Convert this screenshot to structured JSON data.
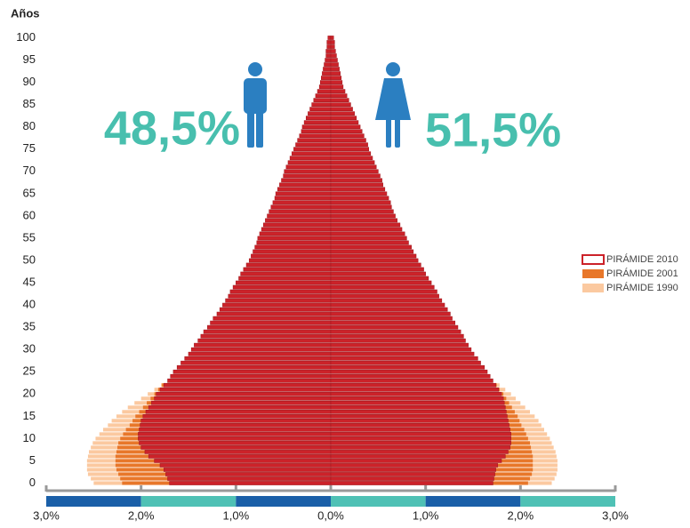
{
  "chart_data": {
    "type": "pyramid",
    "ylabel": "Años",
    "annotations": {
      "male": "48,5%",
      "female": "51,5%"
    },
    "y": [
      0,
      1,
      2,
      3,
      4,
      5,
      6,
      7,
      8,
      9,
      10,
      11,
      12,
      13,
      14,
      15,
      16,
      17,
      18,
      19,
      20,
      21,
      22,
      23,
      24,
      25,
      26,
      27,
      28,
      29,
      30,
      31,
      32,
      33,
      34,
      35,
      36,
      37,
      38,
      39,
      40,
      41,
      42,
      43,
      44,
      45,
      46,
      47,
      48,
      49,
      50,
      51,
      52,
      53,
      54,
      55,
      56,
      57,
      58,
      59,
      60,
      61,
      62,
      63,
      64,
      65,
      66,
      67,
      68,
      69,
      70,
      71,
      72,
      73,
      74,
      75,
      76,
      77,
      78,
      79,
      80,
      81,
      82,
      83,
      84,
      85,
      86,
      87,
      88,
      89,
      90,
      91,
      92,
      93,
      94,
      95,
      96,
      97,
      98,
      99,
      100
    ],
    "ylim": [
      -0.5,
      100.5
    ],
    "yticks": [
      0,
      5,
      10,
      15,
      20,
      25,
      30,
      35,
      40,
      45,
      50,
      55,
      60,
      65,
      70,
      75,
      80,
      85,
      90,
      95,
      100
    ],
    "xlim": [
      -3,
      3
    ],
    "xticks": [
      {
        "value": -3,
        "label": "3,0%"
      },
      {
        "value": -2,
        "label": "2,0%"
      },
      {
        "value": -1,
        "label": "1,0%"
      },
      {
        "value": 0,
        "label": "0,0%"
      },
      {
        "value": 1,
        "label": "1,0%"
      },
      {
        "value": 2,
        "label": "2,0%"
      },
      {
        "value": 3,
        "label": "3,0%"
      }
    ],
    "legend": "right",
    "series": [
      {
        "name": "PIRÁMIDE 2010",
        "color": "#cc2229",
        "male": [
          1.7,
          1.72,
          1.74,
          1.76,
          1.8,
          1.86,
          1.92,
          1.96,
          2.0,
          2.02,
          2.03,
          2.03,
          2.02,
          2.01,
          2.0,
          1.98,
          1.95,
          1.92,
          1.89,
          1.86,
          1.84,
          1.8,
          1.76,
          1.72,
          1.69,
          1.66,
          1.62,
          1.58,
          1.54,
          1.5,
          1.47,
          1.44,
          1.4,
          1.37,
          1.34,
          1.3,
          1.27,
          1.24,
          1.2,
          1.17,
          1.14,
          1.11,
          1.08,
          1.06,
          1.03,
          1.0,
          0.97,
          0.95,
          0.92,
          0.89,
          0.86,
          0.84,
          0.82,
          0.8,
          0.78,
          0.77,
          0.75,
          0.73,
          0.71,
          0.69,
          0.67,
          0.65,
          0.63,
          0.61,
          0.59,
          0.58,
          0.56,
          0.54,
          0.52,
          0.5,
          0.49,
          0.47,
          0.45,
          0.43,
          0.41,
          0.39,
          0.37,
          0.35,
          0.33,
          0.31,
          0.3,
          0.28,
          0.26,
          0.24,
          0.22,
          0.2,
          0.18,
          0.16,
          0.14,
          0.12,
          0.11,
          0.1,
          0.09,
          0.08,
          0.07,
          0.06,
          0.05,
          0.05,
          0.04,
          0.04,
          0.03
        ],
        "female": [
          1.71,
          1.72,
          1.73,
          1.74,
          1.76,
          1.8,
          1.84,
          1.87,
          1.89,
          1.9,
          1.9,
          1.9,
          1.89,
          1.88,
          1.87,
          1.86,
          1.85,
          1.84,
          1.83,
          1.82,
          1.8,
          1.77,
          1.74,
          1.71,
          1.68,
          1.65,
          1.62,
          1.58,
          1.55,
          1.51,
          1.48,
          1.45,
          1.42,
          1.4,
          1.37,
          1.34,
          1.31,
          1.28,
          1.26,
          1.23,
          1.2,
          1.17,
          1.14,
          1.12,
          1.09,
          1.06,
          1.03,
          1.0,
          0.98,
          0.95,
          0.92,
          0.9,
          0.87,
          0.85,
          0.82,
          0.8,
          0.78,
          0.75,
          0.73,
          0.7,
          0.68,
          0.66,
          0.64,
          0.63,
          0.61,
          0.59,
          0.57,
          0.55,
          0.54,
          0.52,
          0.5,
          0.48,
          0.46,
          0.44,
          0.42,
          0.4,
          0.39,
          0.37,
          0.35,
          0.33,
          0.31,
          0.29,
          0.27,
          0.25,
          0.23,
          0.21,
          0.19,
          0.17,
          0.15,
          0.13,
          0.12,
          0.11,
          0.1,
          0.09,
          0.08,
          0.07,
          0.06,
          0.05,
          0.04,
          0.04,
          0.03
        ]
      },
      {
        "name": "PIRÁMIDE 2001",
        "color": "#e8772a",
        "male": [
          2.2,
          2.22,
          2.24,
          2.26,
          2.27,
          2.27,
          2.27,
          2.26,
          2.25,
          2.24,
          2.22,
          2.19,
          2.16,
          2.12,
          2.09,
          2.06,
          2.02,
          1.98,
          1.94,
          1.9,
          1.86,
          1.82,
          1.78,
          null,
          null,
          null,
          null,
          null,
          null,
          null,
          null,
          null,
          null,
          null,
          null,
          null,
          null,
          null,
          null,
          null,
          null,
          null,
          null,
          null,
          null,
          null,
          null,
          null,
          null,
          null,
          null,
          null,
          null,
          null,
          null,
          null,
          null,
          null,
          null,
          null,
          null,
          null,
          null,
          null,
          null,
          null,
          null,
          null,
          null,
          null,
          null,
          null,
          null,
          null,
          null,
          null,
          null,
          null,
          null,
          null,
          null,
          null,
          null,
          null,
          null,
          null,
          null,
          null,
          null,
          null,
          null,
          null,
          null,
          null,
          null,
          null,
          null,
          null,
          null,
          null,
          null
        ],
        "female": [
          2.08,
          2.1,
          2.12,
          2.13,
          2.13,
          2.13,
          2.13,
          2.12,
          2.11,
          2.1,
          2.08,
          2.06,
          2.04,
          2.01,
          1.99,
          1.97,
          1.94,
          1.91,
          1.88,
          1.85,
          1.82,
          1.78,
          1.75,
          null,
          null,
          null,
          null,
          null,
          null,
          null,
          null,
          null,
          null,
          null,
          null,
          null,
          null,
          null,
          null,
          null,
          null,
          null,
          null,
          null,
          null,
          null,
          null,
          null,
          null,
          null,
          null,
          null,
          null,
          null,
          null,
          null,
          null,
          null,
          null,
          null,
          null,
          null,
          null,
          null,
          null,
          null,
          null,
          null,
          null,
          null,
          null,
          null,
          null,
          null,
          null,
          null,
          null,
          null,
          null,
          null,
          null,
          null,
          null,
          null,
          null,
          null,
          null,
          null,
          null,
          null,
          null,
          null,
          null,
          null,
          null,
          null,
          null,
          null,
          null,
          null,
          null
        ]
      },
      {
        "name": "PIRÁMIDE 1990",
        "color": "#fbc9a0",
        "male": [
          2.5,
          2.53,
          2.56,
          2.57,
          2.57,
          2.57,
          2.56,
          2.55,
          2.53,
          2.51,
          2.48,
          2.44,
          2.4,
          2.35,
          2.31,
          2.26,
          2.2,
          2.14,
          2.07,
          2.0,
          1.93,
          1.86,
          1.79,
          null,
          null,
          null,
          null,
          null,
          null,
          null,
          null,
          null,
          null,
          null,
          null,
          null,
          null,
          null,
          null,
          null,
          null,
          null,
          null,
          null,
          null,
          null,
          null,
          null,
          null,
          null,
          null,
          null,
          null,
          null,
          null,
          null,
          null,
          null,
          null,
          null,
          null,
          null,
          null,
          null,
          null,
          null,
          null,
          null,
          null,
          null,
          null,
          null,
          null,
          null,
          null,
          null,
          null,
          null,
          null,
          null,
          null,
          null,
          null,
          null,
          null,
          null,
          null,
          null,
          null,
          null,
          null,
          null,
          null,
          null,
          null,
          null,
          null,
          null,
          null,
          null,
          null
        ],
        "female": [
          2.33,
          2.36,
          2.38,
          2.39,
          2.39,
          2.39,
          2.38,
          2.37,
          2.35,
          2.33,
          2.31,
          2.28,
          2.25,
          2.22,
          2.19,
          2.15,
          2.1,
          2.05,
          2.0,
          1.95,
          1.9,
          1.84,
          1.78,
          null,
          null,
          null,
          null,
          null,
          null,
          null,
          null,
          null,
          null,
          null,
          null,
          null,
          null,
          null,
          null,
          null,
          null,
          null,
          null,
          null,
          null,
          null,
          null,
          null,
          null,
          null,
          null,
          null,
          null,
          null,
          null,
          null,
          null,
          null,
          null,
          null,
          null,
          null,
          null,
          null,
          null,
          null,
          null,
          null,
          null,
          null,
          null,
          null,
          null,
          null,
          null,
          null,
          null,
          null,
          null,
          null,
          null,
          null,
          null,
          null,
          null,
          null,
          null,
          null,
          null,
          null,
          null,
          null,
          null,
          null,
          null,
          null,
          null,
          null,
          null,
          null,
          null
        ]
      }
    ]
  }
}
